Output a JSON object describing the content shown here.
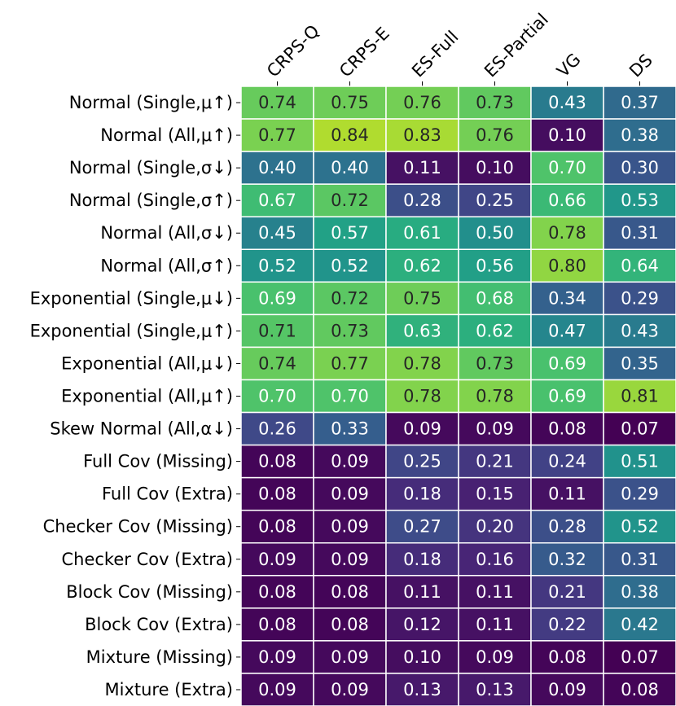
{
  "chart_data": {
    "type": "heatmap",
    "title": "",
    "colormap": "viridis",
    "vmin": 0.07,
    "vmax": 0.84,
    "x_labels": [
      "CRPS-Q",
      "CRPS-E",
      "ES-Full",
      "ES-Partial",
      "VG",
      "DS"
    ],
    "y_labels": [
      "Normal (Single,μ↑)",
      "Normal (All,μ↑)",
      "Normal (Single,σ↓)",
      "Normal (Single,σ↑)",
      "Normal (All,σ↓)",
      "Normal (All,σ↑)",
      "Exponential (Single,μ↓)",
      "Exponential (Single,μ↑)",
      "Exponential (All,μ↓)",
      "Exponential (All,μ↑)",
      "Skew Normal (All,α↓)",
      "Full Cov (Missing)",
      "Full Cov (Extra)",
      "Checker Cov (Missing)",
      "Checker Cov (Extra)",
      "Block Cov (Missing)",
      "Block Cov (Extra)",
      "Mixture (Missing)",
      "Mixture (Extra)"
    ],
    "values": [
      [
        "0.74",
        "0.75",
        "0.76",
        "0.73",
        "0.43",
        "0.37"
      ],
      [
        "0.77",
        "0.84",
        "0.83",
        "0.76",
        "0.10",
        "0.38"
      ],
      [
        "0.40",
        "0.40",
        "0.11",
        "0.10",
        "0.70",
        "0.30"
      ],
      [
        "0.67",
        "0.72",
        "0.28",
        "0.25",
        "0.66",
        "0.53"
      ],
      [
        "0.45",
        "0.57",
        "0.61",
        "0.50",
        "0.78",
        "0.31"
      ],
      [
        "0.52",
        "0.52",
        "0.62",
        "0.56",
        "0.80",
        "0.64"
      ],
      [
        "0.69",
        "0.72",
        "0.75",
        "0.68",
        "0.34",
        "0.29"
      ],
      [
        "0.71",
        "0.73",
        "0.63",
        "0.62",
        "0.47",
        "0.43"
      ],
      [
        "0.74",
        "0.77",
        "0.78",
        "0.73",
        "0.69",
        "0.35"
      ],
      [
        "0.70",
        "0.70",
        "0.78",
        "0.78",
        "0.69",
        "0.81"
      ],
      [
        "0.26",
        "0.33",
        "0.09",
        "0.09",
        "0.08",
        "0.07"
      ],
      [
        "0.08",
        "0.09",
        "0.25",
        "0.21",
        "0.24",
        "0.51"
      ],
      [
        "0.08",
        "0.09",
        "0.18",
        "0.15",
        "0.11",
        "0.29"
      ],
      [
        "0.08",
        "0.09",
        "0.27",
        "0.20",
        "0.28",
        "0.52"
      ],
      [
        "0.09",
        "0.09",
        "0.18",
        "0.16",
        "0.32",
        "0.31"
      ],
      [
        "0.08",
        "0.08",
        "0.11",
        "0.11",
        "0.21",
        "0.38"
      ],
      [
        "0.08",
        "0.08",
        "0.12",
        "0.11",
        "0.22",
        "0.42"
      ],
      [
        "0.09",
        "0.09",
        "0.10",
        "0.09",
        "0.08",
        "0.07"
      ],
      [
        "0.09",
        "0.09",
        "0.13",
        "0.13",
        "0.09",
        "0.08"
      ]
    ],
    "dark_text_cells": [
      [
        0,
        0
      ],
      [
        0,
        1
      ],
      [
        0,
        2
      ],
      [
        0,
        3
      ],
      [
        1,
        0
      ],
      [
        1,
        1
      ],
      [
        1,
        2
      ],
      [
        1,
        3
      ],
      [
        3,
        1
      ],
      [
        4,
        4
      ],
      [
        5,
        4
      ],
      [
        6,
        1
      ],
      [
        6,
        2
      ],
      [
        7,
        0
      ],
      [
        7,
        1
      ],
      [
        8,
        0
      ],
      [
        8,
        1
      ],
      [
        8,
        2
      ],
      [
        8,
        3
      ],
      [
        9,
        2
      ],
      [
        9,
        3
      ],
      [
        9,
        5
      ]
    ]
  }
}
